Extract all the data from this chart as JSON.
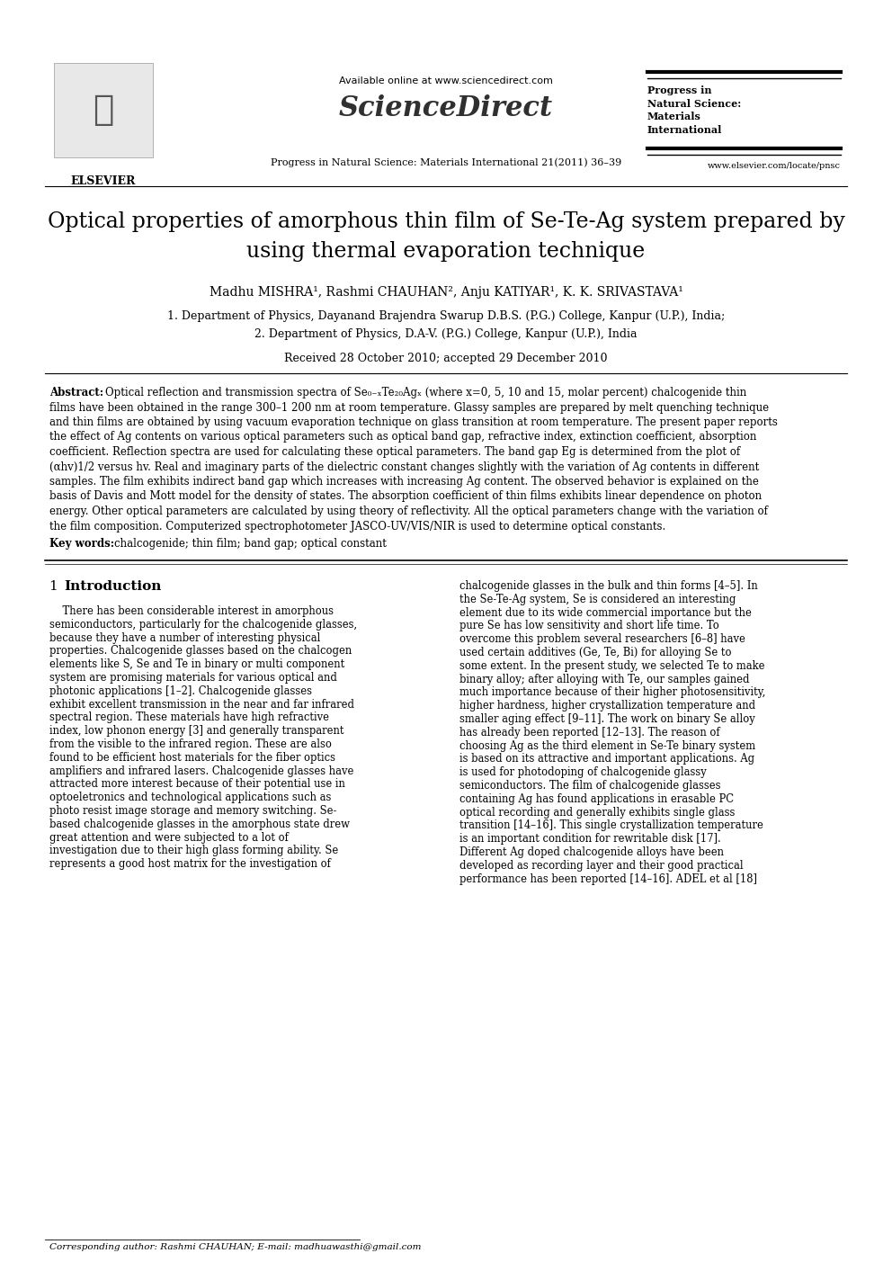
{
  "page_width": 9.92,
  "page_height": 14.03,
  "bg_color": "#ffffff",
  "header_available": "Available online at www.sciencedirect.com",
  "header_sciencedirect": "ScienceDirect",
  "header_journal": "Progress in Natural Science: Materials International 21(2011) 36–39",
  "header_elsevier": "ELSEVIER",
  "header_progress": "Progress in\nNatural Science:\nMaterials\nInternational",
  "header_website": "www.elsevier.com/locate/pnsc",
  "title_line1": "Optical properties of amorphous thin film of Se-Te-Ag system prepared by",
  "title_line2": "using thermal evaporation technique",
  "authors": "Madhu MISHRA¹, Rashmi CHAUHAN², Anju KATIYAR¹, K. K. SRIVASTAVA¹",
  "affil1": "1. Department of Physics, Dayanand Brajendra Swarup D.B.S. (P.G.) College, Kanpur (U.P.), India;",
  "affil2": "2. Department of Physics, D.A-V. (P.G.) College, Kanpur (U.P.), India",
  "received": "Received 28 October 2010; accepted 29 December 2010",
  "abstract_body": "Optical reflection and transmission spectra of Se80−xTe20Agx (where x=0, 5, 10 and 15, molar percent) chalcogenide thin films have been obtained in the range 300–1 200 nm at room temperature. Glassy samples are prepared by melt quenching technique and thin films are obtained by using vacuum evaporation technique on glass transition at room temperature. The present paper reports the effect of Ag contents on various optical parameters such as optical band gap, refractive index, extinction coefficient, absorption coefficient. Reflection spectra are used for calculating these optical parameters. The band gap Eg is determined from the plot of (ahv)1/2 versus hv. Real and imaginary parts of the dielectric constant changes slightly with the variation of Ag contents in different samples. The film exhibits indirect band gap which increases with increasing Ag content. The observed behavior is explained on the basis of Davis and Mott model for the density of states. The absorption coefficient of thin films exhibits linear dependence on photon energy. Other optical parameters are calculated by using theory of reflectivity. All the optical parameters change with the variation of the film composition. Computerized spectrophotometer JASCO-UV/VIS/NIR is used to determine optical constants.",
  "keywords": "chalcogenide; thin film; band gap; optical constant",
  "sec1_title": "1 Introduction",
  "intro_left_lines": [
    "    There has been considerable interest in amorphous",
    "semiconductors, particularly for the chalcogenide glasses,",
    "because they have a number of interesting physical",
    "properties. Chalcogenide glasses based on the chalcogen",
    "elements like S, Se and Te in binary or multi component",
    "system are promising materials for various optical and",
    "photonic applications [1–2]. Chalcogenide glasses",
    "exhibit excellent transmission in the near and far infrared",
    "spectral region. These materials have high refractive",
    "index, low phonon energy [3] and generally transparent",
    "from the visible to the infrared region. These are also",
    "found to be efficient host materials for the fiber optics",
    "amplifiers and infrared lasers. Chalcogenide glasses have",
    "attracted more interest because of their potential use in",
    "optoeletronics and technological applications such as",
    "photo resist image storage and memory switching. Se-",
    "based chalcogenide glasses in the amorphous state drew",
    "great attention and were subjected to a lot of",
    "investigation due to their high glass forming ability. Se",
    "represents a good host matrix for the investigation of"
  ],
  "intro_right_lines": [
    "chalcogenide glasses in the bulk and thin forms [4–5]. In",
    "the Se-Te-Ag system, Se is considered an interesting",
    "element due to its wide commercial importance but the",
    "pure Se has low sensitivity and short life time. To",
    "overcome this problem several researchers [6–8] have",
    "used certain additives (Ge, Te, Bi) for alloying Se to",
    "some extent. In the present study, we selected Te to make",
    "binary alloy; after alloying with Te, our samples gained",
    "much importance because of their higher photosensitivity,",
    "higher hardness, higher crystallization temperature and",
    "smaller aging effect [9–11]. The work on binary Se alloy",
    "has already been reported [12–13]. The reason of",
    "choosing Ag as the third element in Se-Te binary system",
    "is based on its attractive and important applications. Ag",
    "is used for photodoping of chalcogenide glassy",
    "semiconductors. The film of chalcogenide glasses",
    "containing Ag has found applications in erasable PC",
    "optical recording and generally exhibits single glass",
    "transition [14–16]. This single crystallization temperature",
    "is an important condition for rewritable disk [17].",
    "Different Ag doped chalcogenide alloys have been",
    "developed as recording layer and their good practical",
    "performance has been reported [14–16]. ADEL et al [18]"
  ],
  "footnote": "Corresponding author: Rashmi CHAUHAN; E-mail: madhuawasthi@gmail.com"
}
